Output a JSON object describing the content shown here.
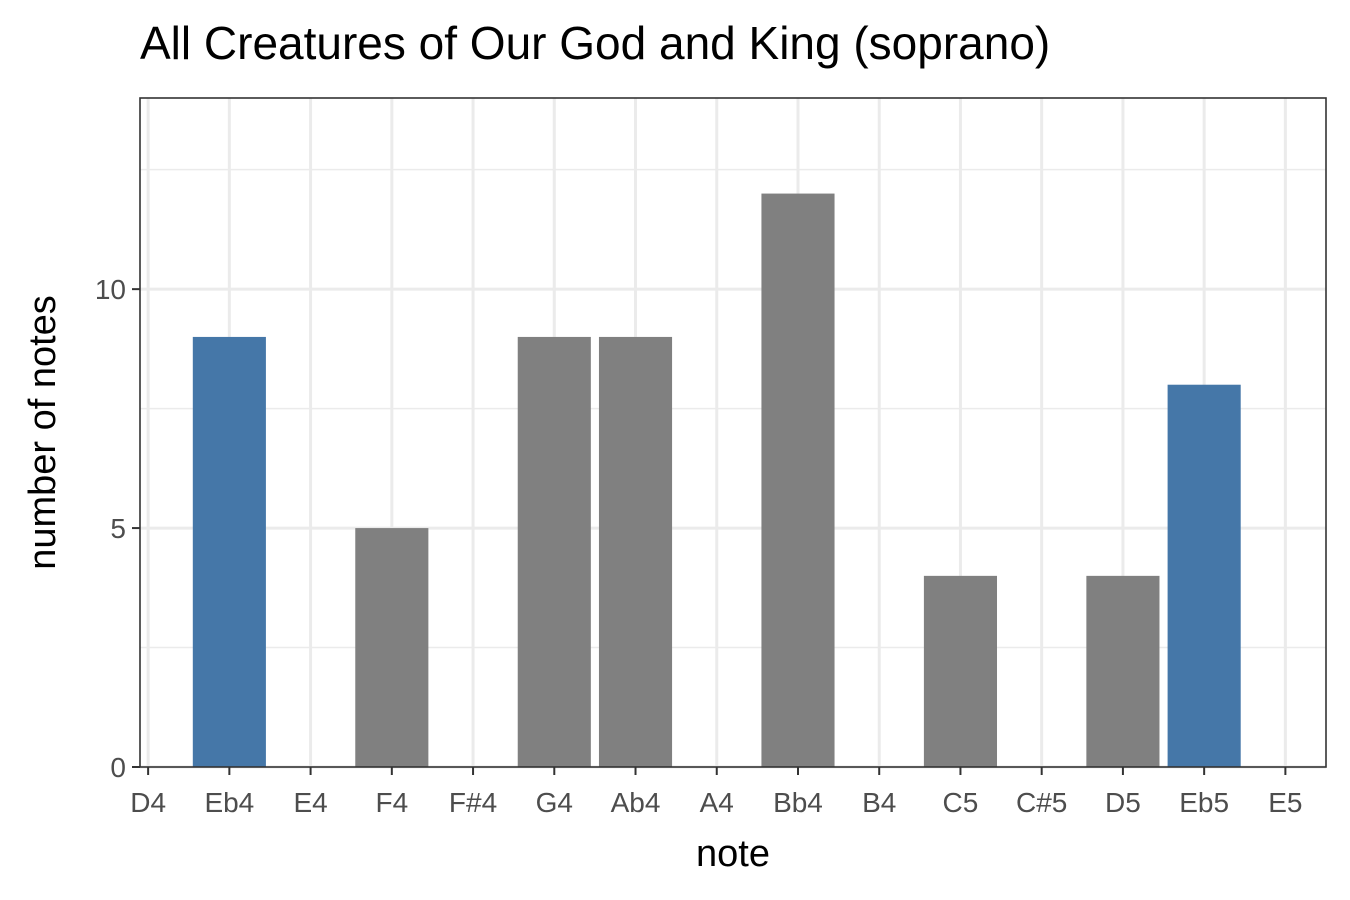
{
  "chart_data": {
    "type": "bar",
    "title": "All Creatures of Our God and King (soprano)",
    "xlabel": "note",
    "ylabel": "number of notes",
    "categories": [
      "D4",
      "Eb4",
      "E4",
      "F4",
      "F#4",
      "G4",
      "Ab4",
      "A4",
      "Bb4",
      "B4",
      "C5",
      "C#5",
      "D5",
      "Eb5",
      "E5"
    ],
    "values": [
      0,
      9,
      0,
      5,
      0,
      9,
      9,
      0,
      12,
      0,
      4,
      0,
      4,
      8,
      0
    ],
    "highlighted": [
      false,
      true,
      false,
      false,
      false,
      false,
      false,
      false,
      false,
      false,
      false,
      false,
      false,
      true,
      false
    ],
    "ylim": [
      0,
      14
    ],
    "yticks": [
      0,
      5,
      10
    ],
    "grid": true,
    "colors": {
      "bar": "#808080",
      "highlight": "#4577a8",
      "grid": "#ebebeb",
      "panel_border": "#333333"
    }
  }
}
